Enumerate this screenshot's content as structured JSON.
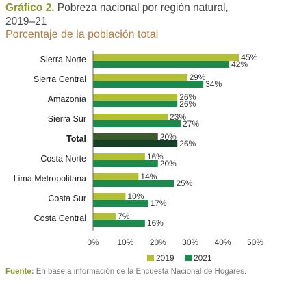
{
  "header": {
    "title_lead": "Gráfico 2.",
    "title_rest": " Pobreza nacional por región natural,",
    "title_years": "2019–21",
    "subtitle": "Porcentaje de la población total"
  },
  "source": {
    "label": "Fuente:",
    "text": " En base a información de la Encuesta Nacional de Hogares."
  },
  "colors": {
    "series_2019": "#b5bf34",
    "series_2021": "#1c8a4c",
    "total_2019": "#3c5c2e",
    "total_2021": "#163f27"
  },
  "chart_data": {
    "type": "bar",
    "orientation": "horizontal",
    "categories": [
      "Sierra Norte",
      "Sierra Central",
      "Amazonía",
      "Sierra Sur",
      "Total",
      "Costa Norte",
      "Lima Metropolitana",
      "Costa Sur",
      "Costa Central"
    ],
    "emphasized_category": "Total",
    "series": [
      {
        "name": "2019",
        "values": [
          45,
          29,
          26,
          23,
          20,
          16,
          14,
          10,
          7
        ]
      },
      {
        "name": "2021",
        "values": [
          42,
          34,
          26,
          27,
          26,
          20,
          25,
          17,
          16
        ]
      }
    ],
    "value_suffix": "%",
    "xlim": [
      0,
      50
    ],
    "xticks": [
      0,
      10,
      20,
      30,
      40,
      50
    ],
    "xtick_labels": [
      "0%",
      "10%",
      "20%",
      "30%",
      "40%",
      "50%"
    ],
    "grid": false,
    "legend_position": "bottom-right"
  }
}
